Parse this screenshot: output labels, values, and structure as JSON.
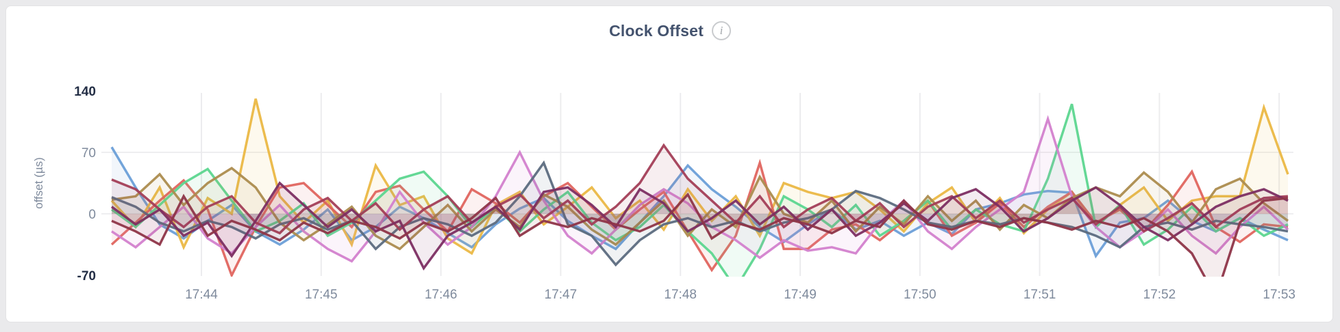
{
  "header": {
    "title": "Clock Offset",
    "info_icon_glyph": "i"
  },
  "colors": {
    "card_background": "#ffffff",
    "page_background": "#eaeaec",
    "title_text": "#44536e",
    "axis_text": "#7e8a9c",
    "axis_text_extreme": "#232e45",
    "gridline": "#ececee"
  },
  "chart_data": {
    "type": "line",
    "title": "Clock Offset",
    "xlabel": "",
    "ylabel": "offset (µs)",
    "ylim": [
      -70,
      140
    ],
    "yticks": [
      140,
      70,
      0,
      -70
    ],
    "ytick_extremes": [
      140,
      -70
    ],
    "grid": {
      "h_lines_at_values": [
        70,
        0
      ],
      "v_lines_at_every_x_tick": true,
      "legend": "none"
    },
    "xticks": [
      "17:44",
      "17:45",
      "17:46",
      "17:47",
      "17:48",
      "17:49",
      "17:50",
      "17:51",
      "17:52",
      "17:53"
    ],
    "x_range_label": "approx. 17:43:15 to 17:53:05",
    "sample_interval_seconds": 12,
    "samples_per_series": 50,
    "area_fill": true,
    "series": [
      {
        "name": "series-1",
        "color": "#6B9FD8",
        "values": [
          76,
          30,
          -12,
          -28,
          -8,
          10,
          -20,
          -35,
          -18,
          5,
          -30,
          -15,
          8,
          -5,
          -22,
          -38,
          -12,
          6,
          18,
          -8,
          -25,
          -40,
          -10,
          20,
          55,
          28,
          8,
          -15,
          -32,
          -12,
          5,
          -18,
          -8,
          -25,
          -10,
          -23,
          5,
          12,
          22,
          26,
          24,
          -48,
          -10,
          -5,
          15,
          -8,
          -20,
          -5,
          -18,
          -30
        ]
      },
      {
        "name": "series-2",
        "color": "#EBB844",
        "values": [
          15,
          -15,
          30,
          -38,
          18,
          0,
          131,
          20,
          -10,
          15,
          -35,
          55,
          10,
          20,
          -28,
          -45,
          10,
          25,
          -12,
          8,
          30,
          -5,
          15,
          -18,
          28,
          -8,
          20,
          -25,
          35,
          25,
          18,
          25,
          5,
          -20,
          12,
          30,
          -10,
          18,
          -22,
          5,
          25,
          -15,
          10,
          30,
          -8,
          15,
          20,
          20,
          121,
          45
        ]
      },
      {
        "name": "series-3",
        "color": "#E0655F",
        "values": [
          -35,
          -10,
          15,
          38,
          5,
          -70,
          -15,
          30,
          35,
          10,
          -15,
          25,
          32,
          5,
          -20,
          28,
          12,
          -10,
          20,
          35,
          8,
          -18,
          5,
          25,
          -20,
          -64,
          -25,
          58,
          -40,
          -40,
          -18,
          -12,
          -30,
          -8,
          15,
          -25,
          -10,
          12,
          -15,
          8,
          25,
          -10,
          5,
          -20,
          10,
          48,
          -15,
          -32,
          -12,
          -15
        ]
      },
      {
        "name": "series-4",
        "color": "#5CD68F",
        "values": [
          5,
          -15,
          10,
          35,
          51,
          15,
          -20,
          -8,
          12,
          -25,
          -10,
          15,
          40,
          48,
          20,
          -15,
          8,
          -20,
          5,
          25,
          -10,
          -30,
          -15,
          10,
          -20,
          -45,
          -85,
          -40,
          20,
          5,
          -15,
          10,
          -25,
          -8,
          15,
          -18,
          5,
          -12,
          -20,
          40,
          125,
          -15,
          10,
          -35,
          -18,
          8,
          -20,
          -5,
          -25,
          -12
        ]
      },
      {
        "name": "series-5",
        "color": "#D381CE",
        "values": [
          -20,
          -38,
          -15,
          8,
          -28,
          -45,
          -15,
          10,
          -20,
          -40,
          -54,
          -20,
          25,
          -10,
          -35,
          -15,
          20,
          70,
          15,
          -25,
          -45,
          -18,
          10,
          28,
          12,
          -15,
          -30,
          -50,
          -30,
          -42,
          -38,
          -45,
          -10,
          15,
          -20,
          -40,
          -15,
          5,
          25,
          108,
          20,
          -15,
          -38,
          -20,
          5,
          -25,
          -45,
          -15,
          8,
          -18
        ]
      },
      {
        "name": "series-6",
        "color": "#AC8C4E",
        "values": [
          16,
          20,
          45,
          10,
          35,
          52,
          30,
          -10,
          -30,
          -12,
          8,
          -25,
          -40,
          -15,
          10,
          -20,
          5,
          -15,
          22,
          8,
          -18,
          -35,
          -10,
          15,
          -25,
          5,
          -15,
          42,
          0,
          -10,
          15,
          -20,
          8,
          -12,
          20,
          -8,
          15,
          -18,
          10,
          -5,
          18,
          30,
          20,
          47,
          25,
          -10,
          28,
          40,
          12,
          -8
        ]
      },
      {
        "name": "series-7",
        "color": "#5C6B80",
        "values": [
          19,
          8,
          -10,
          -20,
          -8,
          -15,
          -28,
          -12,
          -5,
          -18,
          -8,
          -40,
          -15,
          -5,
          -12,
          -25,
          -10,
          20,
          58,
          -12,
          -25,
          -58,
          -30,
          -12,
          -5,
          -15,
          -8,
          -20,
          -10,
          -5,
          5,
          26,
          18,
          5,
          -10,
          -15,
          -8,
          -12,
          -5,
          -10,
          -15,
          -25,
          -38,
          -15,
          -10,
          -18,
          -8,
          -12,
          -15,
          -20
        ]
      },
      {
        "name": "series-8",
        "color": "#A33E57",
        "values": [
          39,
          28,
          5,
          -15,
          8,
          20,
          -10,
          -22,
          5,
          18,
          -8,
          12,
          -18,
          5,
          20,
          -10,
          8,
          22,
          -5,
          15,
          -12,
          8,
          35,
          78,
          40,
          15,
          -10,
          20,
          -15,
          5,
          18,
          -8,
          12,
          -15,
          8,
          20,
          -5,
          15,
          -10,
          5,
          18,
          -12,
          8,
          -20,
          -5,
          12,
          -15,
          5,
          18,
          20
        ]
      },
      {
        "name": "series-9",
        "color": "#7C2E62",
        "values": [
          8,
          -12,
          5,
          -25,
          -10,
          -48,
          -8,
          35,
          10,
          -15,
          5,
          -20,
          -8,
          -62,
          -25,
          -10,
          8,
          -18,
          25,
          30,
          10,
          -15,
          28,
          12,
          -20,
          -5,
          15,
          -12,
          8,
          -18,
          5,
          -25,
          -10,
          12,
          -8,
          18,
          28,
          8,
          -20,
          -5,
          15,
          30,
          10,
          -15,
          -30,
          -12,
          8,
          20,
          28,
          15
        ]
      },
      {
        "name": "series-10",
        "color": "#8E3548",
        "values": [
          -8,
          -20,
          -35,
          20,
          -25,
          -8,
          -18,
          -30,
          -10,
          -22,
          -8,
          -15,
          -28,
          -10,
          -20,
          -5,
          18,
          -25,
          -8,
          -15,
          -5,
          -12,
          -20,
          -8,
          22,
          -28,
          -10,
          -18,
          -5,
          -12,
          -22,
          -8,
          -15,
          15,
          -12,
          -18,
          -8,
          -15,
          -5,
          -10,
          -18,
          -8,
          -15,
          -5,
          -20,
          -45,
          -95,
          -10,
          15,
          18
        ]
      }
    ]
  }
}
